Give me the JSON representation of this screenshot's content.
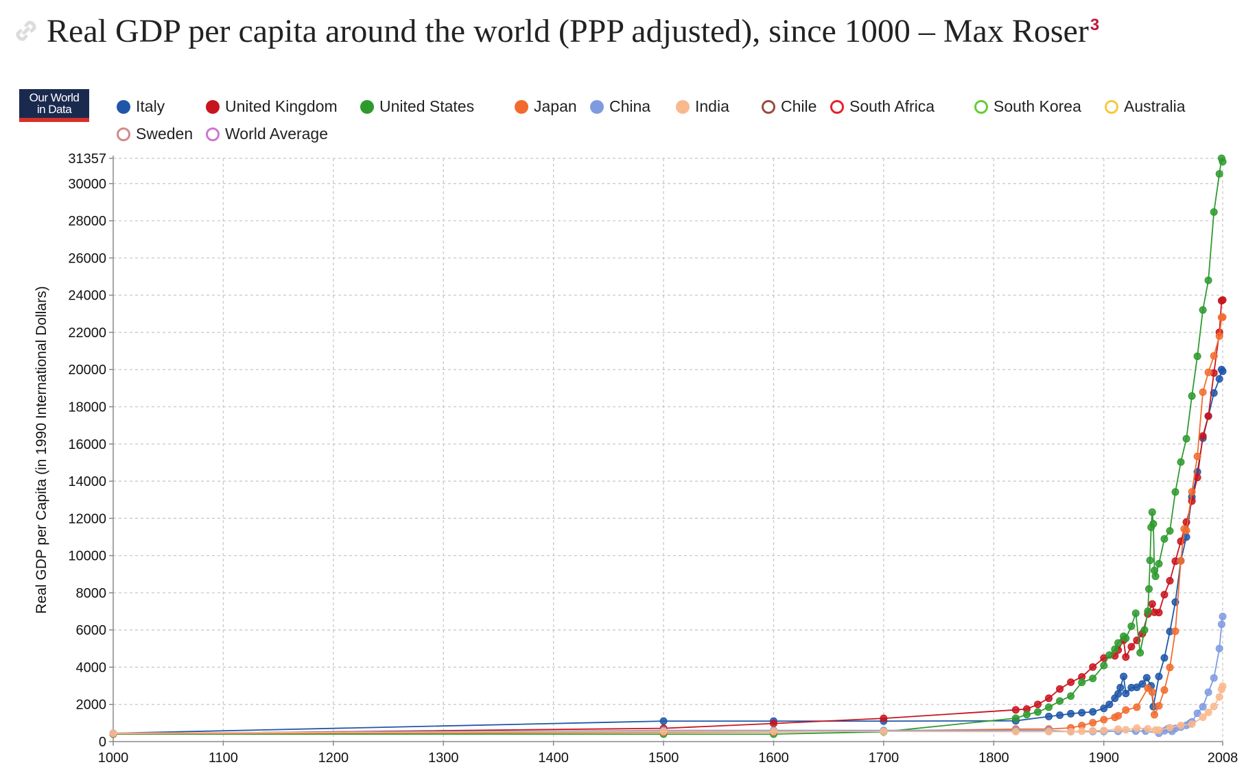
{
  "header": {
    "title": "Real GDP per capita around the world (PPP adjusted), since 1000 – Max Roser",
    "footnote": "3"
  },
  "logo": {
    "line1": "Our World",
    "line2": "in Data"
  },
  "colors": {
    "accent": "#c0163a",
    "grid": "#c8c8c8"
  },
  "chart_data": {
    "type": "line",
    "ylabel": "Real GDP per Capita (in 1990 International Dollars)",
    "xlim": [
      1000,
      2008
    ],
    "ylim": [
      0,
      31357
    ],
    "x_ticks": [
      1000,
      1100,
      1200,
      1300,
      1400,
      1500,
      1600,
      1700,
      1800,
      1900,
      2008
    ],
    "y_ticks": [
      0,
      2000,
      4000,
      6000,
      8000,
      10000,
      12000,
      14000,
      16000,
      18000,
      20000,
      22000,
      24000,
      26000,
      28000,
      30000,
      31357
    ],
    "grid": true,
    "legend_position": "top",
    "series": [
      {
        "name": "Italy",
        "color": "#1f56a8",
        "filled": true,
        "points": [
          [
            1000,
            450
          ],
          [
            1500,
            1100
          ],
          [
            1600,
            1100
          ],
          [
            1700,
            1100
          ],
          [
            1820,
            1117
          ],
          [
            1850,
            1350
          ],
          [
            1860,
            1420
          ],
          [
            1870,
            1499
          ],
          [
            1880,
            1550
          ],
          [
            1890,
            1600
          ],
          [
            1900,
            1785
          ],
          [
            1905,
            2000
          ],
          [
            1910,
            2330
          ],
          [
            1913,
            2564
          ],
          [
            1915,
            2900
          ],
          [
            1918,
            3500
          ],
          [
            1920,
            2587
          ],
          [
            1925,
            2900
          ],
          [
            1930,
            2918
          ],
          [
            1935,
            3100
          ],
          [
            1939,
            3430
          ],
          [
            1943,
            3000
          ],
          [
            1945,
            1880
          ],
          [
            1950,
            3502
          ],
          [
            1955,
            4500
          ],
          [
            1960,
            5916
          ],
          [
            1965,
            7500
          ],
          [
            1970,
            9719
          ],
          [
            1975,
            11000
          ],
          [
            1980,
            13149
          ],
          [
            1985,
            14500
          ],
          [
            1990,
            16313
          ],
          [
            1995,
            17500
          ],
          [
            2000,
            18740
          ],
          [
            2005,
            19500
          ],
          [
            2007,
            20000
          ],
          [
            2008,
            19909
          ]
        ]
      },
      {
        "name": "United Kingdom",
        "color": "#c8141e",
        "filled": true,
        "points": [
          [
            1000,
            400
          ],
          [
            1500,
            714
          ],
          [
            1600,
            974
          ],
          [
            1700,
            1250
          ],
          [
            1820,
            1706
          ],
          [
            1830,
            1750
          ],
          [
            1840,
            2000
          ],
          [
            1850,
            2330
          ],
          [
            1860,
            2830
          ],
          [
            1870,
            3190
          ],
          [
            1880,
            3480
          ],
          [
            1890,
            4009
          ],
          [
            1900,
            4492
          ],
          [
            1910,
            4611
          ],
          [
            1913,
            4921
          ],
          [
            1918,
            5450
          ],
          [
            1920,
            4548
          ],
          [
            1925,
            5100
          ],
          [
            1930,
            5441
          ],
          [
            1935,
            5800
          ],
          [
            1940,
            6856
          ],
          [
            1944,
            7400
          ],
          [
            1946,
            6950
          ],
          [
            1950,
            6939
          ],
          [
            1955,
            7900
          ],
          [
            1960,
            8645
          ],
          [
            1965,
            9700
          ],
          [
            1970,
            10767
          ],
          [
            1975,
            11800
          ],
          [
            1980,
            12931
          ],
          [
            1985,
            14200
          ],
          [
            1990,
            16430
          ],
          [
            1995,
            17500
          ],
          [
            2000,
            19817
          ],
          [
            2005,
            22000
          ],
          [
            2007,
            23700
          ],
          [
            2008,
            23742
          ]
        ]
      },
      {
        "name": "United States",
        "color": "#2e9a2e",
        "filled": true,
        "points": [
          [
            1000,
            400
          ],
          [
            1500,
            400
          ],
          [
            1600,
            400
          ],
          [
            1700,
            527
          ],
          [
            1820,
            1257
          ],
          [
            1830,
            1450
          ],
          [
            1840,
            1588
          ],
          [
            1850,
            1849
          ],
          [
            1860,
            2178
          ],
          [
            1870,
            2445
          ],
          [
            1880,
            3184
          ],
          [
            1890,
            3392
          ],
          [
            1900,
            4091
          ],
          [
            1905,
            4650
          ],
          [
            1910,
            4964
          ],
          [
            1913,
            5301
          ],
          [
            1918,
            5660
          ],
          [
            1920,
            5552
          ],
          [
            1925,
            6200
          ],
          [
            1929,
            6899
          ],
          [
            1933,
            4777
          ],
          [
            1937,
            6000
          ],
          [
            1940,
            7010
          ],
          [
            1941,
            8206
          ],
          [
            1942,
            9741
          ],
          [
            1943,
            11518
          ],
          [
            1944,
            12333
          ],
          [
            1945,
            11709
          ],
          [
            1946,
            9197
          ],
          [
            1947,
            8886
          ],
          [
            1950,
            9561
          ],
          [
            1955,
            10897
          ],
          [
            1960,
            11328
          ],
          [
            1965,
            13419
          ],
          [
            1970,
            15030
          ],
          [
            1975,
            16284
          ],
          [
            1980,
            18577
          ],
          [
            1985,
            20717
          ],
          [
            1990,
            23201
          ],
          [
            1995,
            24799
          ],
          [
            2000,
            28467
          ],
          [
            2005,
            30519
          ],
          [
            2007,
            31357
          ],
          [
            2008,
            31178
          ]
        ]
      },
      {
        "name": "Japan",
        "color": "#f26b2e",
        "filled": true,
        "points": [
          [
            1000,
            425
          ],
          [
            1500,
            500
          ],
          [
            1600,
            520
          ],
          [
            1700,
            570
          ],
          [
            1820,
            669
          ],
          [
            1850,
            679
          ],
          [
            1870,
            737
          ],
          [
            1880,
            863
          ],
          [
            1890,
            1012
          ],
          [
            1900,
            1180
          ],
          [
            1910,
            1304
          ],
          [
            1913,
            1387
          ],
          [
            1920,
            1696
          ],
          [
            1930,
            1850
          ],
          [
            1940,
            2874
          ],
          [
            1944,
            2659
          ],
          [
            1946,
            1444
          ],
          [
            1950,
            1921
          ],
          [
            1955,
            2771
          ],
          [
            1960,
            3986
          ],
          [
            1965,
            5934
          ],
          [
            1970,
            9714
          ],
          [
            1973,
            11434
          ],
          [
            1975,
            11344
          ],
          [
            1980,
            13428
          ],
          [
            1985,
            15331
          ],
          [
            1990,
            18789
          ],
          [
            1995,
            19849
          ],
          [
            2000,
            20738
          ],
          [
            2005,
            21800
          ],
          [
            2007,
            22800
          ],
          [
            2008,
            22816
          ]
        ]
      },
      {
        "name": "China",
        "color": "#7f9be0",
        "filled": true,
        "points": [
          [
            1000,
            450
          ],
          [
            1500,
            600
          ],
          [
            1600,
            600
          ],
          [
            1700,
            600
          ],
          [
            1820,
            600
          ],
          [
            1850,
            600
          ],
          [
            1870,
            530
          ],
          [
            1890,
            540
          ],
          [
            1900,
            545
          ],
          [
            1913,
            552
          ],
          [
            1929,
            562
          ],
          [
            1938,
            562
          ],
          [
            1950,
            448
          ],
          [
            1955,
            575
          ],
          [
            1958,
            693
          ],
          [
            1960,
            662
          ],
          [
            1962,
            551
          ],
          [
            1965,
            706
          ],
          [
            1970,
            778
          ],
          [
            1975,
            874
          ],
          [
            1978,
            978
          ],
          [
            1980,
            1061
          ],
          [
            1985,
            1522
          ],
          [
            1990,
            1871
          ],
          [
            1995,
            2653
          ],
          [
            2000,
            3421
          ],
          [
            2005,
            5000
          ],
          [
            2007,
            6303
          ],
          [
            2008,
            6725
          ]
        ]
      },
      {
        "name": "India",
        "color": "#f9b98e",
        "filled": true,
        "points": [
          [
            1000,
            450
          ],
          [
            1500,
            550
          ],
          [
            1600,
            550
          ],
          [
            1700,
            550
          ],
          [
            1820,
            533
          ],
          [
            1850,
            533
          ],
          [
            1870,
            533
          ],
          [
            1880,
            560
          ],
          [
            1890,
            584
          ],
          [
            1900,
            599
          ],
          [
            1913,
            673
          ],
          [
            1920,
            635
          ],
          [
            1930,
            726
          ],
          [
            1940,
            686
          ],
          [
            1947,
            618
          ],
          [
            1950,
            619
          ],
          [
            1960,
            753
          ],
          [
            1970,
            868
          ],
          [
            1980,
            938
          ],
          [
            1990,
            1309
          ],
          [
            1995,
            1568
          ],
          [
            2000,
            1892
          ],
          [
            2005,
            2400
          ],
          [
            2007,
            2810
          ],
          [
            2008,
            2975
          ]
        ]
      }
    ],
    "legend_entries": [
      {
        "name": "Italy",
        "color": "#1f56a8",
        "filled": true
      },
      {
        "name": "United Kingdom",
        "color": "#c8141e",
        "filled": true
      },
      {
        "name": "United States",
        "color": "#2e9a2e",
        "filled": true
      },
      {
        "name": "Japan",
        "color": "#f26b2e",
        "filled": true
      },
      {
        "name": "China",
        "color": "#7f9be0",
        "filled": true
      },
      {
        "name": "India",
        "color": "#f9b98e",
        "filled": true
      },
      {
        "name": "Chile",
        "color": "#9a4a3c",
        "filled": false
      },
      {
        "name": "South Africa",
        "color": "#e8202a",
        "filled": false
      },
      {
        "name": "South Korea",
        "color": "#66cc33",
        "filled": false
      },
      {
        "name": "Australia",
        "color": "#f7c83c",
        "filled": false
      },
      {
        "name": "Sweden",
        "color": "#d08a8a",
        "filled": false
      },
      {
        "name": "World Average",
        "color": "#cc77cc",
        "filled": false
      }
    ]
  }
}
